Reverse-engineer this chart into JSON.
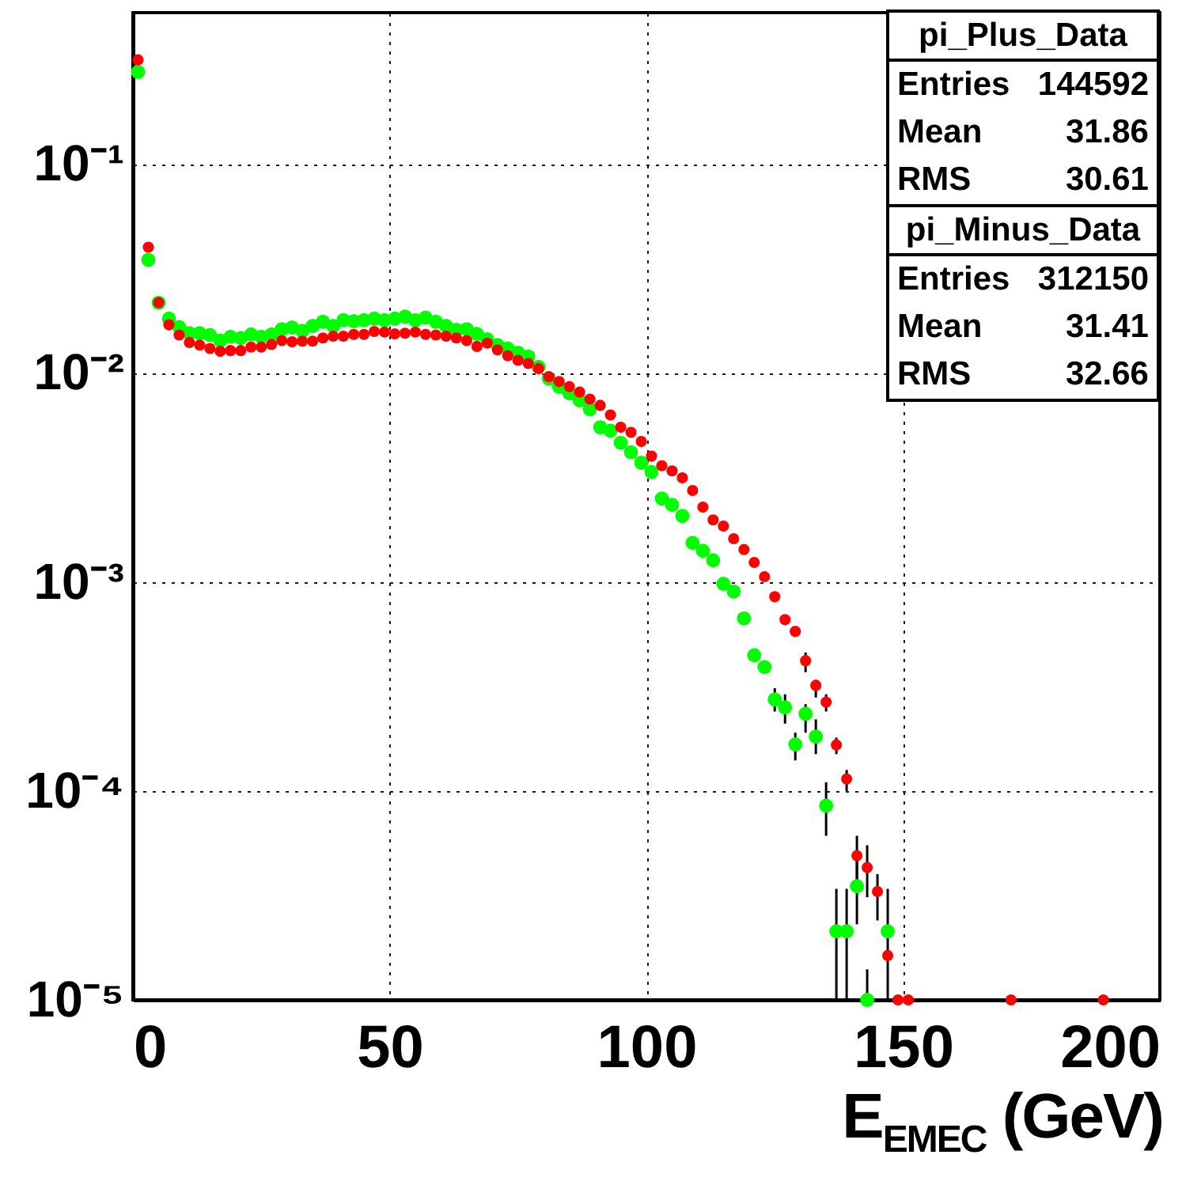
{
  "chart_data": {
    "type": "scatter",
    "xlabel": "E$_{EMEC}$ (GeV)",
    "log": "y",
    "grid": true,
    "marker": "circle",
    "xlim": [
      0,
      200
    ],
    "xticks": [
      0,
      50,
      100,
      150,
      200
    ],
    "ylim": [
      1e-05,
      0.53
    ],
    "yticks": [
      {
        "value": 0.1,
        "label": "10⁻¹"
      },
      {
        "value": 0.01,
        "label": "10⁻²"
      },
      {
        "value": 0.001,
        "label": "10⁻³"
      },
      {
        "value": 0.0001,
        "label": "10⁻⁴"
      },
      {
        "value": 1e-05,
        "label": "10⁻⁵"
      }
    ],
    "x": [
      1,
      3,
      5,
      7,
      9,
      11,
      13,
      15,
      17,
      19,
      21,
      23,
      25,
      27,
      29,
      31,
      33,
      35,
      37,
      39,
      41,
      43,
      45,
      47,
      49,
      51,
      53,
      55,
      57,
      59,
      61,
      63,
      65,
      67,
      69,
      71,
      73,
      75,
      77,
      79,
      81,
      83,
      85,
      87,
      89,
      91,
      93,
      95,
      97,
      99,
      101,
      103,
      105,
      107,
      109,
      111,
      113,
      115,
      117,
      119,
      121,
      123,
      125,
      127,
      129,
      131,
      133,
      135,
      137,
      139,
      141,
      143,
      145,
      147,
      149,
      151,
      171,
      189
    ],
    "series": [
      {
        "color": "#ff0000",
        "values": [
          0.315,
          0.04,
          0.0217,
          0.017,
          0.0152,
          0.014,
          0.0136,
          0.0131,
          0.0127,
          0.0128,
          0.0128,
          0.0133,
          0.0133,
          0.0137,
          0.0143,
          0.0141,
          0.0142,
          0.0142,
          0.0147,
          0.015,
          0.015,
          0.0153,
          0.0153,
          0.0158,
          0.0157,
          0.0154,
          0.0155,
          0.0157,
          0.0153,
          0.0152,
          0.015,
          0.0147,
          0.0143,
          0.0134,
          0.0139,
          0.0129,
          0.0121,
          0.0115,
          0.0111,
          0.0105,
          0.0096,
          0.0091,
          0.0086,
          0.0081,
          0.0075,
          0.007,
          0.0063,
          0.0055,
          0.0052,
          0.0047,
          0.004,
          0.0036,
          0.0034,
          0.00315,
          0.00274,
          0.00228,
          0.00198,
          0.00185,
          0.00161,
          0.00143,
          0.00124,
          0.00106,
          0.00085,
          0.00066,
          0.00058,
          0.00042,
          0.00032,
          0.000266,
          0.000166,
          0.000114,
          4.9e-05,
          4.3e-05,
          3.3e-05,
          1.63e-05,
          1e-05,
          1e-05,
          1e-05,
          1e-05
        ],
        "errors": [
          null,
          null,
          null,
          null,
          null,
          null,
          null,
          null,
          null,
          null,
          null,
          null,
          null,
          null,
          null,
          null,
          null,
          null,
          null,
          null,
          null,
          null,
          null,
          null,
          null,
          null,
          null,
          null,
          null,
          null,
          null,
          null,
          null,
          null,
          null,
          null,
          null,
          null,
          null,
          null,
          null,
          null,
          null,
          null,
          null,
          null,
          null,
          null,
          null,
          null,
          null,
          null,
          null,
          null,
          null,
          null,
          null,
          null,
          null,
          null,
          null,
          null,
          null,
          null,
          null,
          [
            0.00037,
            0.00046
          ],
          [
            0.00028,
            0.00034
          ],
          [
            0.00024,
            0.00029
          ],
          [
            0.00015,
            0.00018
          ],
          [
            0.0001,
            0.000126
          ],
          [
            3.7e-05,
            6.1e-05
          ],
          [
            3.1e-05,
            5.5e-05
          ],
          [
            2.4e-05,
            4e-05
          ],
          null,
          null,
          null,
          null,
          null
        ]
      },
      {
        "color": "#00ff00",
        "values": [
          0.276,
          0.0348,
          0.0217,
          0.0182,
          0.0166,
          0.0155,
          0.0155,
          0.0152,
          0.0143,
          0.0149,
          0.0147,
          0.0153,
          0.0149,
          0.0153,
          0.0162,
          0.0165,
          0.0159,
          0.0168,
          0.0176,
          0.0168,
          0.0179,
          0.0177,
          0.0179,
          0.0182,
          0.0179,
          0.0182,
          0.0186,
          0.0179,
          0.0184,
          0.0176,
          0.0168,
          0.0161,
          0.0162,
          0.0154,
          0.0145,
          0.0136,
          0.0131,
          0.0125,
          0.012,
          0.0107,
          0.0094,
          0.0086,
          0.008,
          0.0074,
          0.0067,
          0.0055,
          0.0053,
          0.00464,
          0.00418,
          0.00372,
          0.00336,
          0.00251,
          0.00234,
          0.00207,
          0.00154,
          0.00141,
          0.00127,
          0.00098,
          0.0009,
          0.00067,
          0.000446,
          0.000392,
          0.000274,
          0.000251,
          0.000167,
          0.000234,
          0.000182,
          8.5e-05,
          2.13e-05,
          2.13e-05,
          3.5e-05,
          1e-05,
          null,
          2.13e-05,
          null,
          null,
          null,
          null
        ],
        "errors": [
          null,
          null,
          null,
          null,
          null,
          null,
          null,
          null,
          null,
          null,
          null,
          null,
          null,
          null,
          null,
          null,
          null,
          null,
          null,
          null,
          null,
          null,
          null,
          null,
          null,
          null,
          null,
          null,
          null,
          null,
          null,
          null,
          null,
          null,
          null,
          null,
          null,
          null,
          null,
          null,
          null,
          null,
          null,
          null,
          null,
          null,
          null,
          null,
          null,
          null,
          null,
          null,
          null,
          null,
          null,
          null,
          null,
          null,
          null,
          null,
          null,
          null,
          [
            0.00024,
            0.00031
          ],
          [
            0.00021,
            0.00029
          ],
          [
            0.00014,
            0.00019
          ],
          [
            0.00019,
            0.00026
          ],
          [
            0.00015,
            0.00022
          ],
          [
            6.1e-05,
            0.00011
          ],
          [
            1e-05,
            3.4e-05
          ],
          [
            1e-05,
            3.4e-05
          ],
          [
            2.3e-05,
            4.7e-05
          ],
          [
            1e-05,
            1.4e-05
          ],
          null,
          [
            1e-05,
            3.4e-05
          ],
          null,
          null,
          null,
          null
        ]
      }
    ],
    "annotations": [
      "pi_Plus_Data",
      "Entries 144592",
      "Mean 31.86",
      "RMS 30.61",
      "pi_Minus_Data",
      "Entries 312150",
      "Mean 31.41",
      "RMS 32.66"
    ]
  }
}
